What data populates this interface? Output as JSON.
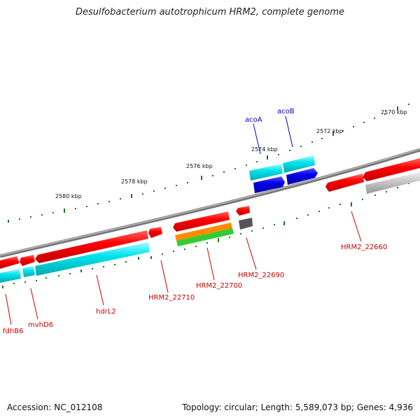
{
  "title": "Desulfobacterium autotrophicum HRM2, complete genome",
  "footer": {
    "accession": "Accession: NC_012108",
    "summary": "Topology: circular; Length: 5,589,073 bp; Genes: 4,936"
  },
  "scale_labels": [
    "2570 kbp",
    "2572 kbp",
    "2574 kbp",
    "2576 kbp",
    "2578 kbp",
    "2580 kbp"
  ],
  "gene_labels": {
    "acoA": "acoA",
    "acoB": "acoB",
    "HRM2_22660": "HRM2_22660",
    "HRM2_22690": "HRM2_22690",
    "HRM2_22700": "HRM2_22700",
    "HRM2_22710": "HRM2_22710",
    "hdrL2": "hdrL2",
    "mvhD6": "mvhD6",
    "fdhB6": "fdhB6"
  },
  "colors": {
    "cds_red": "#ff0000",
    "cds_cyan": "#00e5ee",
    "cds_blue": "#0000ee",
    "cds_orange": "#ff8c00",
    "cds_green": "#33cc33",
    "cds_gray": "#c0c0c0",
    "cds_dark": "#555555",
    "backbone": "#8c8c8c",
    "ticks": "#1a7a1a",
    "label_red": "#cc0000",
    "label_blue": "#0000cc"
  }
}
